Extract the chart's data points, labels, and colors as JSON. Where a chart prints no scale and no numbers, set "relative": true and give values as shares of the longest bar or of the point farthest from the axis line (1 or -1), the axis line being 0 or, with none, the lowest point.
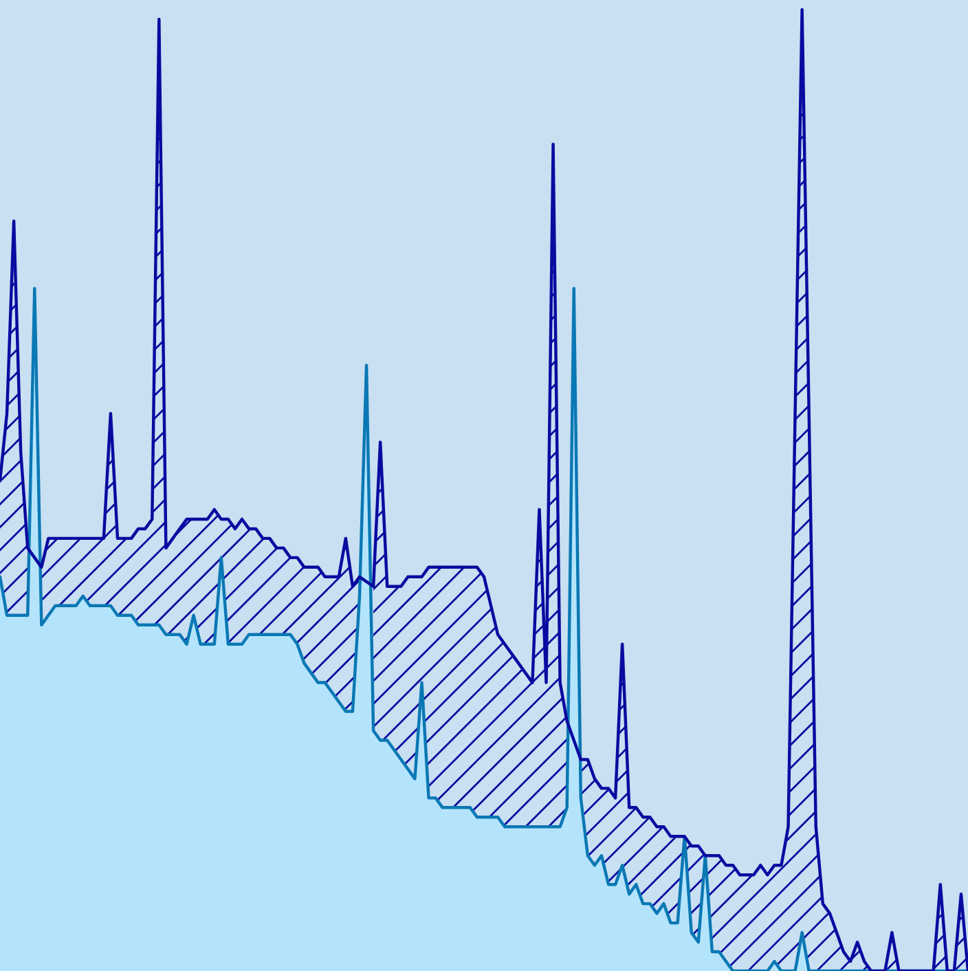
{
  "chart_data": {
    "type": "area",
    "relative": true,
    "categories": [
      null,
      null,
      null,
      null,
      null,
      null,
      null,
      null,
      null,
      null,
      null,
      null,
      null,
      null,
      null,
      null,
      null,
      null,
      null,
      null,
      null,
      null,
      null,
      null,
      null,
      null,
      null,
      null,
      null,
      null,
      null,
      null,
      null,
      null,
      null,
      null,
      null,
      null,
      null,
      null,
      null,
      null,
      null,
      null,
      null,
      null,
      null,
      null,
      null,
      null,
      null,
      null,
      null,
      null,
      null,
      null,
      null,
      null,
      null,
      null,
      null,
      null,
      null,
      null,
      null,
      null,
      null,
      null,
      null,
      null,
      null,
      null,
      null,
      null,
      null,
      null,
      null,
      null,
      null,
      null,
      null,
      null,
      null,
      null,
      null,
      null,
      null,
      null,
      null,
      null,
      null,
      null,
      null,
      null,
      null,
      null,
      null,
      null,
      null,
      null,
      null,
      null,
      null,
      null,
      null,
      null,
      null,
      null,
      null,
      null,
      null,
      null,
      null,
      null,
      null,
      null,
      null,
      null,
      null,
      null,
      null,
      null,
      null,
      null,
      null,
      null,
      null,
      null,
      null,
      null,
      null,
      null,
      null,
      null,
      null,
      null,
      null,
      null,
      null,
      null,
      null
    ],
    "series": [
      {
        "color": "#0a78b4",
        "values": [
          0.41,
          0.37,
          0.37,
          0.37,
          0.37,
          0.71,
          0.36,
          0.37,
          0.38,
          0.38,
          0.38,
          0.38,
          0.39,
          0.38,
          0.38,
          0.38,
          0.38,
          0.37,
          0.37,
          0.37,
          0.36,
          0.36,
          0.36,
          0.36,
          0.35,
          0.35,
          0.35,
          0.34,
          0.37,
          0.34,
          0.34,
          0.34,
          0.43,
          0.34,
          0.34,
          0.34,
          0.35,
          0.35,
          0.35,
          0.35,
          0.35,
          0.35,
          0.35,
          0.34,
          0.32,
          0.31,
          0.3,
          0.3,
          0.29,
          0.28,
          0.27,
          0.27,
          0.39,
          0.63,
          0.25,
          0.24,
          0.24,
          0.23,
          0.22,
          0.21,
          0.2,
          0.3,
          0.18,
          0.18,
          0.17,
          0.17,
          0.17,
          0.17,
          0.17,
          0.16,
          0.16,
          0.16,
          0.16,
          0.15,
          0.15,
          0.15,
          0.15,
          0.15,
          0.15,
          0.15,
          0.15,
          0.15,
          0.17,
          0.71,
          0.18,
          0.12,
          0.11,
          0.12,
          0.09,
          0.09,
          0.11,
          0.08,
          0.09,
          0.07,
          0.07,
          0.06,
          0.07,
          0.05,
          0.05,
          0.14,
          0.04,
          0.03,
          0.12,
          0.02,
          0.02,
          0.01,
          0,
          0,
          0,
          0,
          0,
          0,
          0.01,
          0,
          0,
          0,
          0.04,
          0,
          0,
          0,
          0,
          0,
          0,
          0,
          0,
          0,
          0,
          0,
          0,
          0,
          0,
          0,
          0,
          0,
          0,
          0,
          0,
          0,
          0,
          0,
          0
        ]
      },
      {
        "color": "#0a0aa0",
        "values": [
          0.51,
          0.58,
          0.78,
          0.54,
          0.44,
          null,
          0.42,
          0.45,
          0.45,
          0.45,
          0.45,
          0.45,
          0.45,
          0.45,
          0.45,
          0.45,
          0.58,
          0.45,
          0.45,
          0.45,
          0.46,
          0.46,
          0.47,
          0.99,
          0.44,
          0.45,
          0.46,
          0.47,
          0.47,
          0.47,
          0.47,
          0.48,
          0.47,
          0.47,
          0.46,
          0.47,
          0.46,
          0.46,
          0.45,
          0.45,
          0.44,
          0.44,
          0.43,
          0.43,
          0.42,
          0.42,
          0.42,
          0.41,
          0.41,
          0.41,
          0.45,
          0.4,
          0.41,
          null,
          0.4,
          0.55,
          0.4,
          0.4,
          0.4,
          0.41,
          0.41,
          0.41,
          0.42,
          0.42,
          0.42,
          0.42,
          0.42,
          0.42,
          0.42,
          0.42,
          0.41,
          0.38,
          0.35,
          0.34,
          0.33,
          0.32,
          0.31,
          0.3,
          0.48,
          0.3,
          0.86,
          0.3,
          0.26,
          null,
          0.22,
          0.22,
          0.2,
          0.19,
          0.19,
          0.18,
          0.34,
          0.17,
          0.17,
          0.16,
          0.16,
          0.15,
          0.15,
          0.14,
          0.14,
          0.14,
          0.13,
          0.13,
          0.12,
          0.12,
          0.12,
          0.11,
          0.11,
          0.1,
          0.1,
          0.1,
          0.11,
          0.1,
          0.11,
          0.11,
          0.15,
          0.58,
          1.0,
          0.58,
          0.15,
          0.07,
          0.06,
          0.04,
          0.02,
          0.01,
          0.03,
          0.01,
          0,
          0,
          0,
          0.04,
          0,
          0,
          0,
          0,
          0,
          0,
          0.09,
          0,
          0,
          0.08,
          0
        ]
      }
    ]
  }
}
